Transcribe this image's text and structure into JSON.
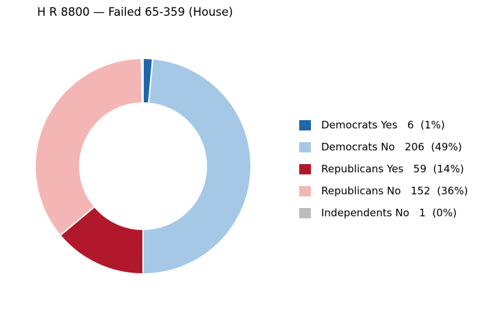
{
  "chart_data": {
    "type": "pie",
    "title": "H R 8800 — Failed 65-359 (House)",
    "categories": [
      "Democrats Yes",
      "Democrats No",
      "Republicans Yes",
      "Republicans No",
      "Independents No"
    ],
    "values": [
      6,
      206,
      59,
      152,
      1
    ],
    "percent_labels": [
      "1%",
      "49%",
      "14%",
      "36%",
      "0%"
    ],
    "colors": [
      "#2166ac",
      "#a6c8e7",
      "#b2182b",
      "#f4b6b4",
      "#bdbdbd"
    ],
    "legend_labels": [
      "Democrats Yes   6  (1%)",
      "Democrats No   206  (49%)",
      "Republicans Yes   59  (14%)",
      "Republicans No   152  (36%)",
      "Independents No   1  (0%)"
    ],
    "legend_placement": "right",
    "donut": true,
    "start": "top",
    "direction": "clockwise"
  }
}
